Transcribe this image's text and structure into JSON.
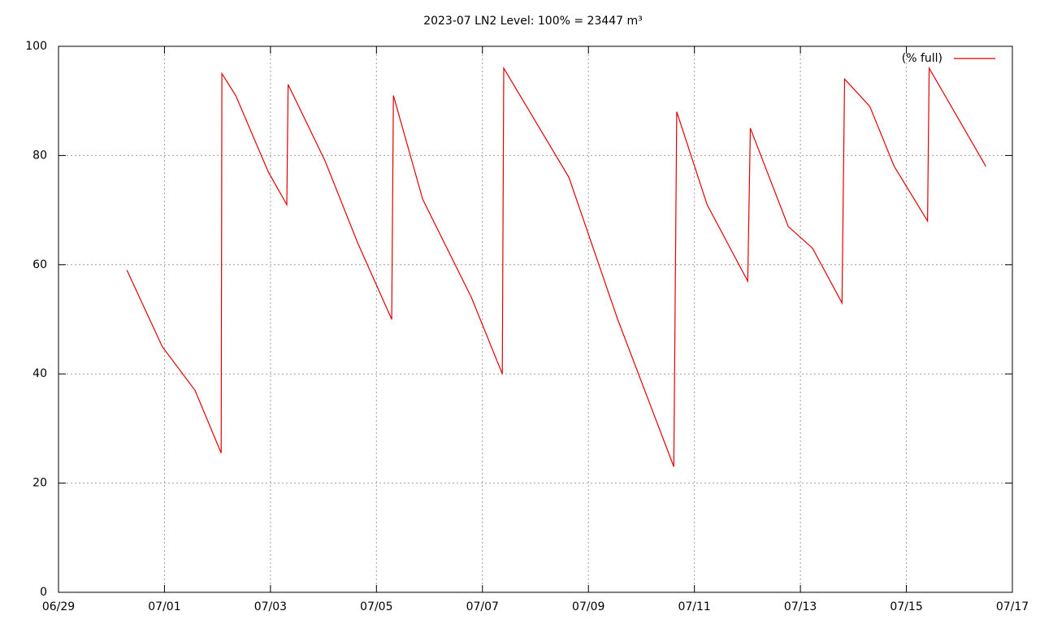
{
  "chart_data": {
    "type": "line",
    "title": "2023-07 LN2 Level: 100% = 23447 m³",
    "x": [
      "06/30 07:00",
      "06/30 23:00",
      "07/01 13:50",
      "07/02 01:40",
      "07/02 02:00",
      "07/02 08:15",
      "07/02 23:00",
      "07/03 07:25",
      "07/03 08:00",
      "07/04 00:45",
      "07/04 15:30",
      "07/05 06:55",
      "07/05 07:40",
      "07/05 20:55",
      "07/06 19:00",
      "07/07 09:00",
      "07/07 09:40",
      "07/08 15:10",
      "07/09 13:15",
      "07/10 14:40",
      "07/10 16:00",
      "07/11 05:45",
      "07/12 00:10",
      "07/12 01:20",
      "07/12 18:30",
      "07/13 05:30",
      "07/13 18:50",
      "07/13 20:00",
      "07/14 07:25",
      "07/14 18:30",
      "07/15 09:35",
      "07/15 10:20",
      "07/16 12:00"
    ],
    "series": [
      {
        "name": "(% full)",
        "color": "#e00000",
        "values": [
          59,
          45,
          37,
          25.5,
          95,
          91,
          77,
          71,
          93,
          79,
          64,
          50,
          91,
          72,
          54,
          40,
          96,
          76,
          50,
          23,
          88,
          71,
          57,
          85,
          67,
          63,
          53,
          94,
          89,
          78,
          68,
          96,
          78
        ]
      }
    ],
    "xlim": [
      "06/29",
      "07/17"
    ],
    "xticks": [
      "06/29",
      "07/01",
      "07/03",
      "07/05",
      "07/07",
      "07/09",
      "07/11",
      "07/13",
      "07/15",
      "07/17"
    ],
    "ylim": [
      0,
      100
    ],
    "yticks": [
      0,
      20,
      40,
      60,
      80,
      100
    ],
    "grid": true,
    "legend": "top-right"
  }
}
